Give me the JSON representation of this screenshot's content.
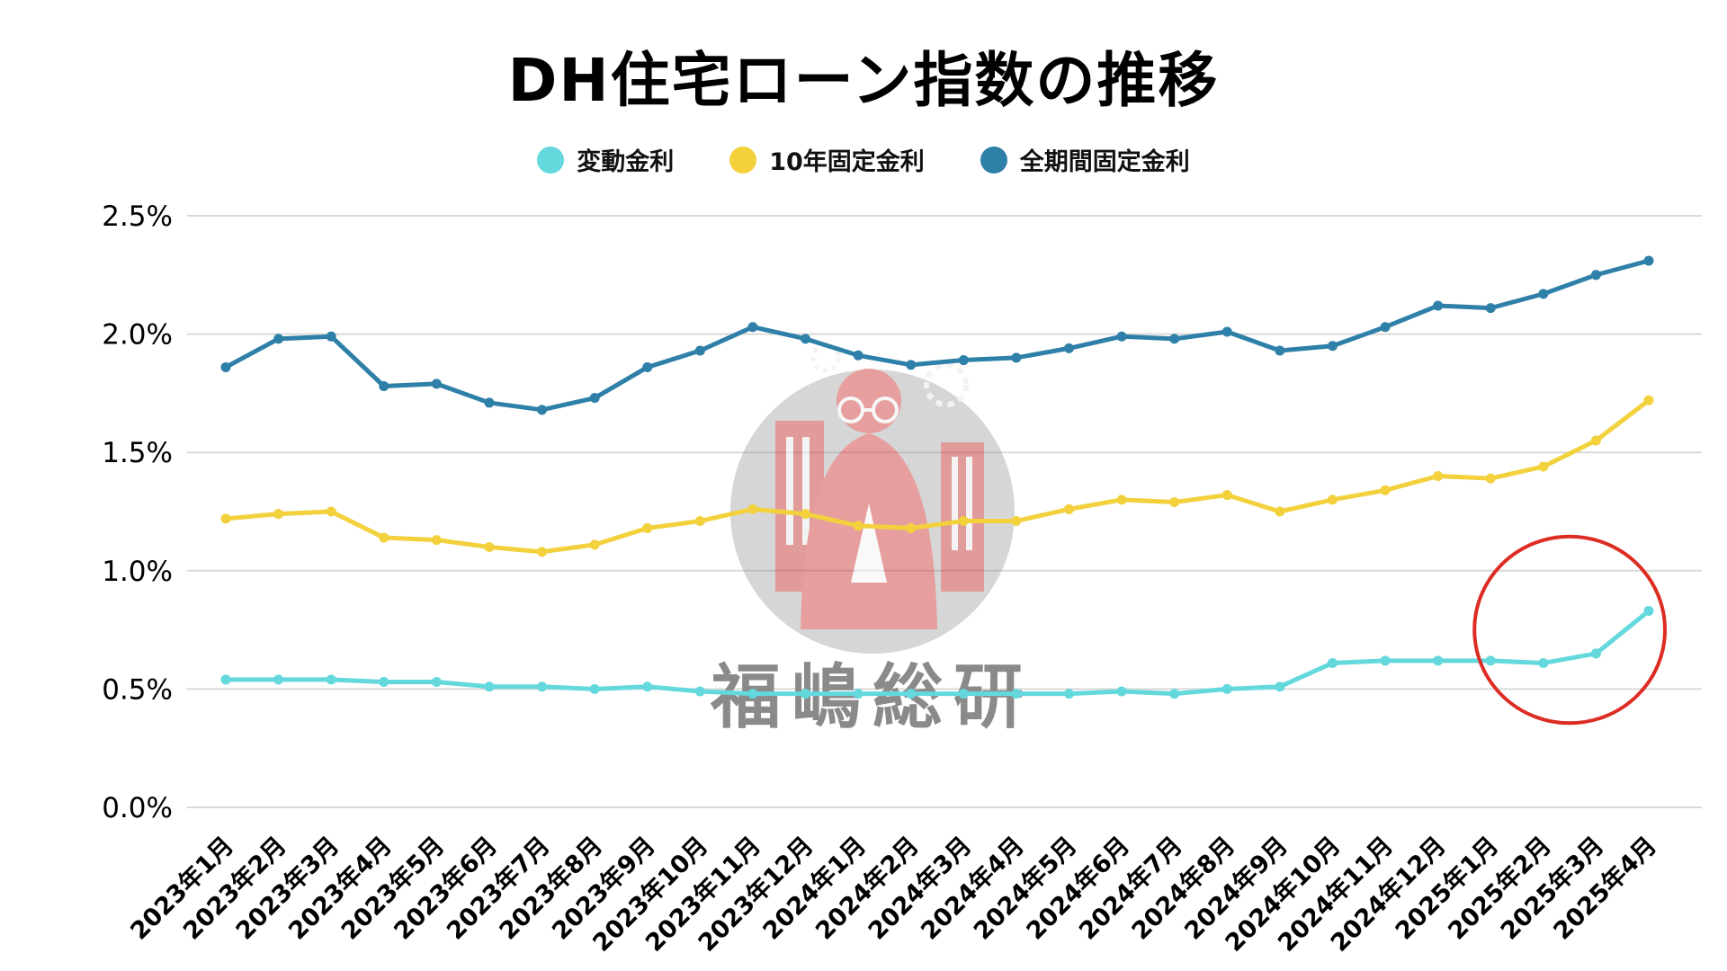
{
  "title": "DH住宅ローン指数の推移",
  "watermark": {
    "text": "福嶋総研"
  },
  "legend": [
    {
      "label": "変動金利",
      "color": "#63d8dd"
    },
    {
      "label": "10年固定金利",
      "color": "#f2d13d"
    },
    {
      "label": "全期間固定金利",
      "color": "#2e80a8"
    }
  ],
  "chart_data": {
    "type": "line",
    "title": "DH住宅ローン指数の推移",
    "xlabel": "",
    "ylabel": "",
    "ylim": [
      0,
      2.5
    ],
    "yticks": [
      "0.0%",
      "0.5%",
      "1.0%",
      "1.5%",
      "2.0%",
      "2.5%"
    ],
    "ytick_values": [
      0,
      0.5,
      1.0,
      1.5,
      2.0,
      2.5
    ],
    "grid": true,
    "grid_color": "#d9d9d9",
    "legend_position": "top",
    "x": [
      "2023年1月",
      "2023年2月",
      "2023年3月",
      "2023年4月",
      "2023年5月",
      "2023年6月",
      "2023年7月",
      "2023年8月",
      "2023年9月",
      "2023年10月",
      "2023年11月",
      "2023年12月",
      "2024年1月",
      "2024年2月",
      "2024年3月",
      "2024年4月",
      "2024年5月",
      "2024年6月",
      "2024年7月",
      "2024年8月",
      "2024年9月",
      "2024年10月",
      "2024年11月",
      "2024年12月",
      "2025年1月",
      "2025年2月",
      "2025年3月",
      "2025年4月"
    ],
    "series": [
      {
        "name": "変動金利",
        "color": "#63d8dd",
        "values": [
          0.54,
          0.54,
          0.54,
          0.53,
          0.53,
          0.51,
          0.51,
          0.5,
          0.51,
          0.49,
          0.48,
          0.48,
          0.48,
          0.48,
          0.48,
          0.48,
          0.48,
          0.49,
          0.48,
          0.5,
          0.51,
          0.61,
          0.62,
          0.62,
          0.62,
          0.61,
          0.65,
          0.83
        ]
      },
      {
        "name": "10年固定金利",
        "color": "#f2d13d",
        "values": [
          1.22,
          1.24,
          1.25,
          1.14,
          1.13,
          1.1,
          1.08,
          1.11,
          1.18,
          1.21,
          1.26,
          1.24,
          1.19,
          1.18,
          1.21,
          1.21,
          1.26,
          1.3,
          1.29,
          1.32,
          1.25,
          1.3,
          1.34,
          1.4,
          1.39,
          1.44,
          1.55,
          1.72
        ]
      },
      {
        "name": "全期間固定金利",
        "color": "#2e80a8",
        "values": [
          1.86,
          1.98,
          1.99,
          1.78,
          1.79,
          1.71,
          1.68,
          1.73,
          1.86,
          1.93,
          2.03,
          1.98,
          1.91,
          1.87,
          1.89,
          1.9,
          1.94,
          1.99,
          1.98,
          2.01,
          1.93,
          1.95,
          2.03,
          2.12,
          2.11,
          2.17,
          2.25,
          2.31
        ]
      }
    ],
    "annotation": {
      "shape": "circle",
      "color": "#dd2c23",
      "target_series": "変動金利",
      "target_x_from": "2025年1月",
      "target_x_to": "2025年4月",
      "note": "red circle highlighting the recent rise of the variable rate"
    }
  }
}
